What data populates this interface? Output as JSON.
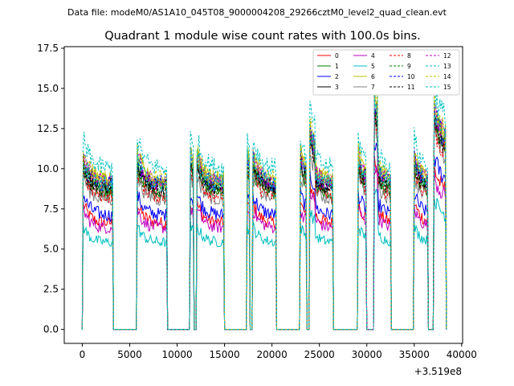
{
  "chart_data": {
    "type": "line",
    "supertitle": "Data file: modeM0/AS1A10_045T08_9000004208_29266cztM0_level2_quad_clean.evt",
    "title": "Quadrant 1 module wise count rates with 100.0s bins.",
    "xlabel": "",
    "ylabel": "",
    "x_offset_label": "+3.519e8",
    "xlim": [
      -1900,
      40100
    ],
    "ylim": [
      -0.87,
      17.6
    ],
    "xticks": [
      0,
      5000,
      10000,
      15000,
      20000,
      25000,
      30000,
      35000,
      40000
    ],
    "yticks": [
      0.0,
      2.5,
      5.0,
      7.5,
      10.0,
      12.5,
      15.0,
      17.5
    ],
    "legend_position": "top-right",
    "bin_seconds": 100,
    "segments": [
      {
        "start": 0,
        "end": 3300
      },
      {
        "start": 5700,
        "end": 9000
      },
      {
        "start": 11300,
        "end": 11800
      },
      {
        "start": 12000,
        "end": 15000
      },
      {
        "start": 17300,
        "end": 17700
      },
      {
        "start": 17900,
        "end": 20500
      },
      {
        "start": 22900,
        "end": 23700
      },
      {
        "start": 23900,
        "end": 26500
      },
      {
        "start": 29000,
        "end": 30000
      },
      {
        "start": 30700,
        "end": 32600
      },
      {
        "start": 34900,
        "end": 36500
      },
      {
        "start": 37000,
        "end": 38400
      }
    ],
    "series": [
      {
        "name": "0",
        "color": "#ff0000",
        "dash": "solid",
        "level": 6.6
      },
      {
        "name": "1",
        "color": "#008000",
        "dash": "solid",
        "level": 8.5
      },
      {
        "name": "2",
        "color": "#0000ff",
        "dash": "solid",
        "level": 7.1
      },
      {
        "name": "3",
        "color": "#000000",
        "dash": "solid",
        "level": 8.9
      },
      {
        "name": "4",
        "color": "#bf00bf",
        "dash": "solid",
        "level": 6.3
      },
      {
        "name": "5",
        "color": "#00bfbf",
        "dash": "solid",
        "level": 5.4
      },
      {
        "name": "6",
        "color": "#bfbf00",
        "dash": "solid",
        "level": 9.2
      },
      {
        "name": "7",
        "color": "#808080",
        "dash": "solid",
        "level": 8.1
      },
      {
        "name": "8",
        "color": "#ff0000",
        "dash": "dashed",
        "level": 8.3
      },
      {
        "name": "9",
        "color": "#008000",
        "dash": "dashed",
        "level": 8.7
      },
      {
        "name": "10",
        "color": "#0000ff",
        "dash": "dashed",
        "level": 9.0
      },
      {
        "name": "11",
        "color": "#000000",
        "dash": "dashed",
        "level": 8.6
      },
      {
        "name": "12",
        "color": "#bf00bf",
        "dash": "dashed",
        "level": 9.1
      },
      {
        "name": "13",
        "color": "#00bfbf",
        "dash": "dashed",
        "level": 10.0
      },
      {
        "name": "14",
        "color": "#bfbf00",
        "dash": "dashed",
        "level": 9.3
      },
      {
        "name": "15",
        "color": "#00bfbf",
        "dash": "dashed",
        "level": 9.0
      }
    ]
  }
}
